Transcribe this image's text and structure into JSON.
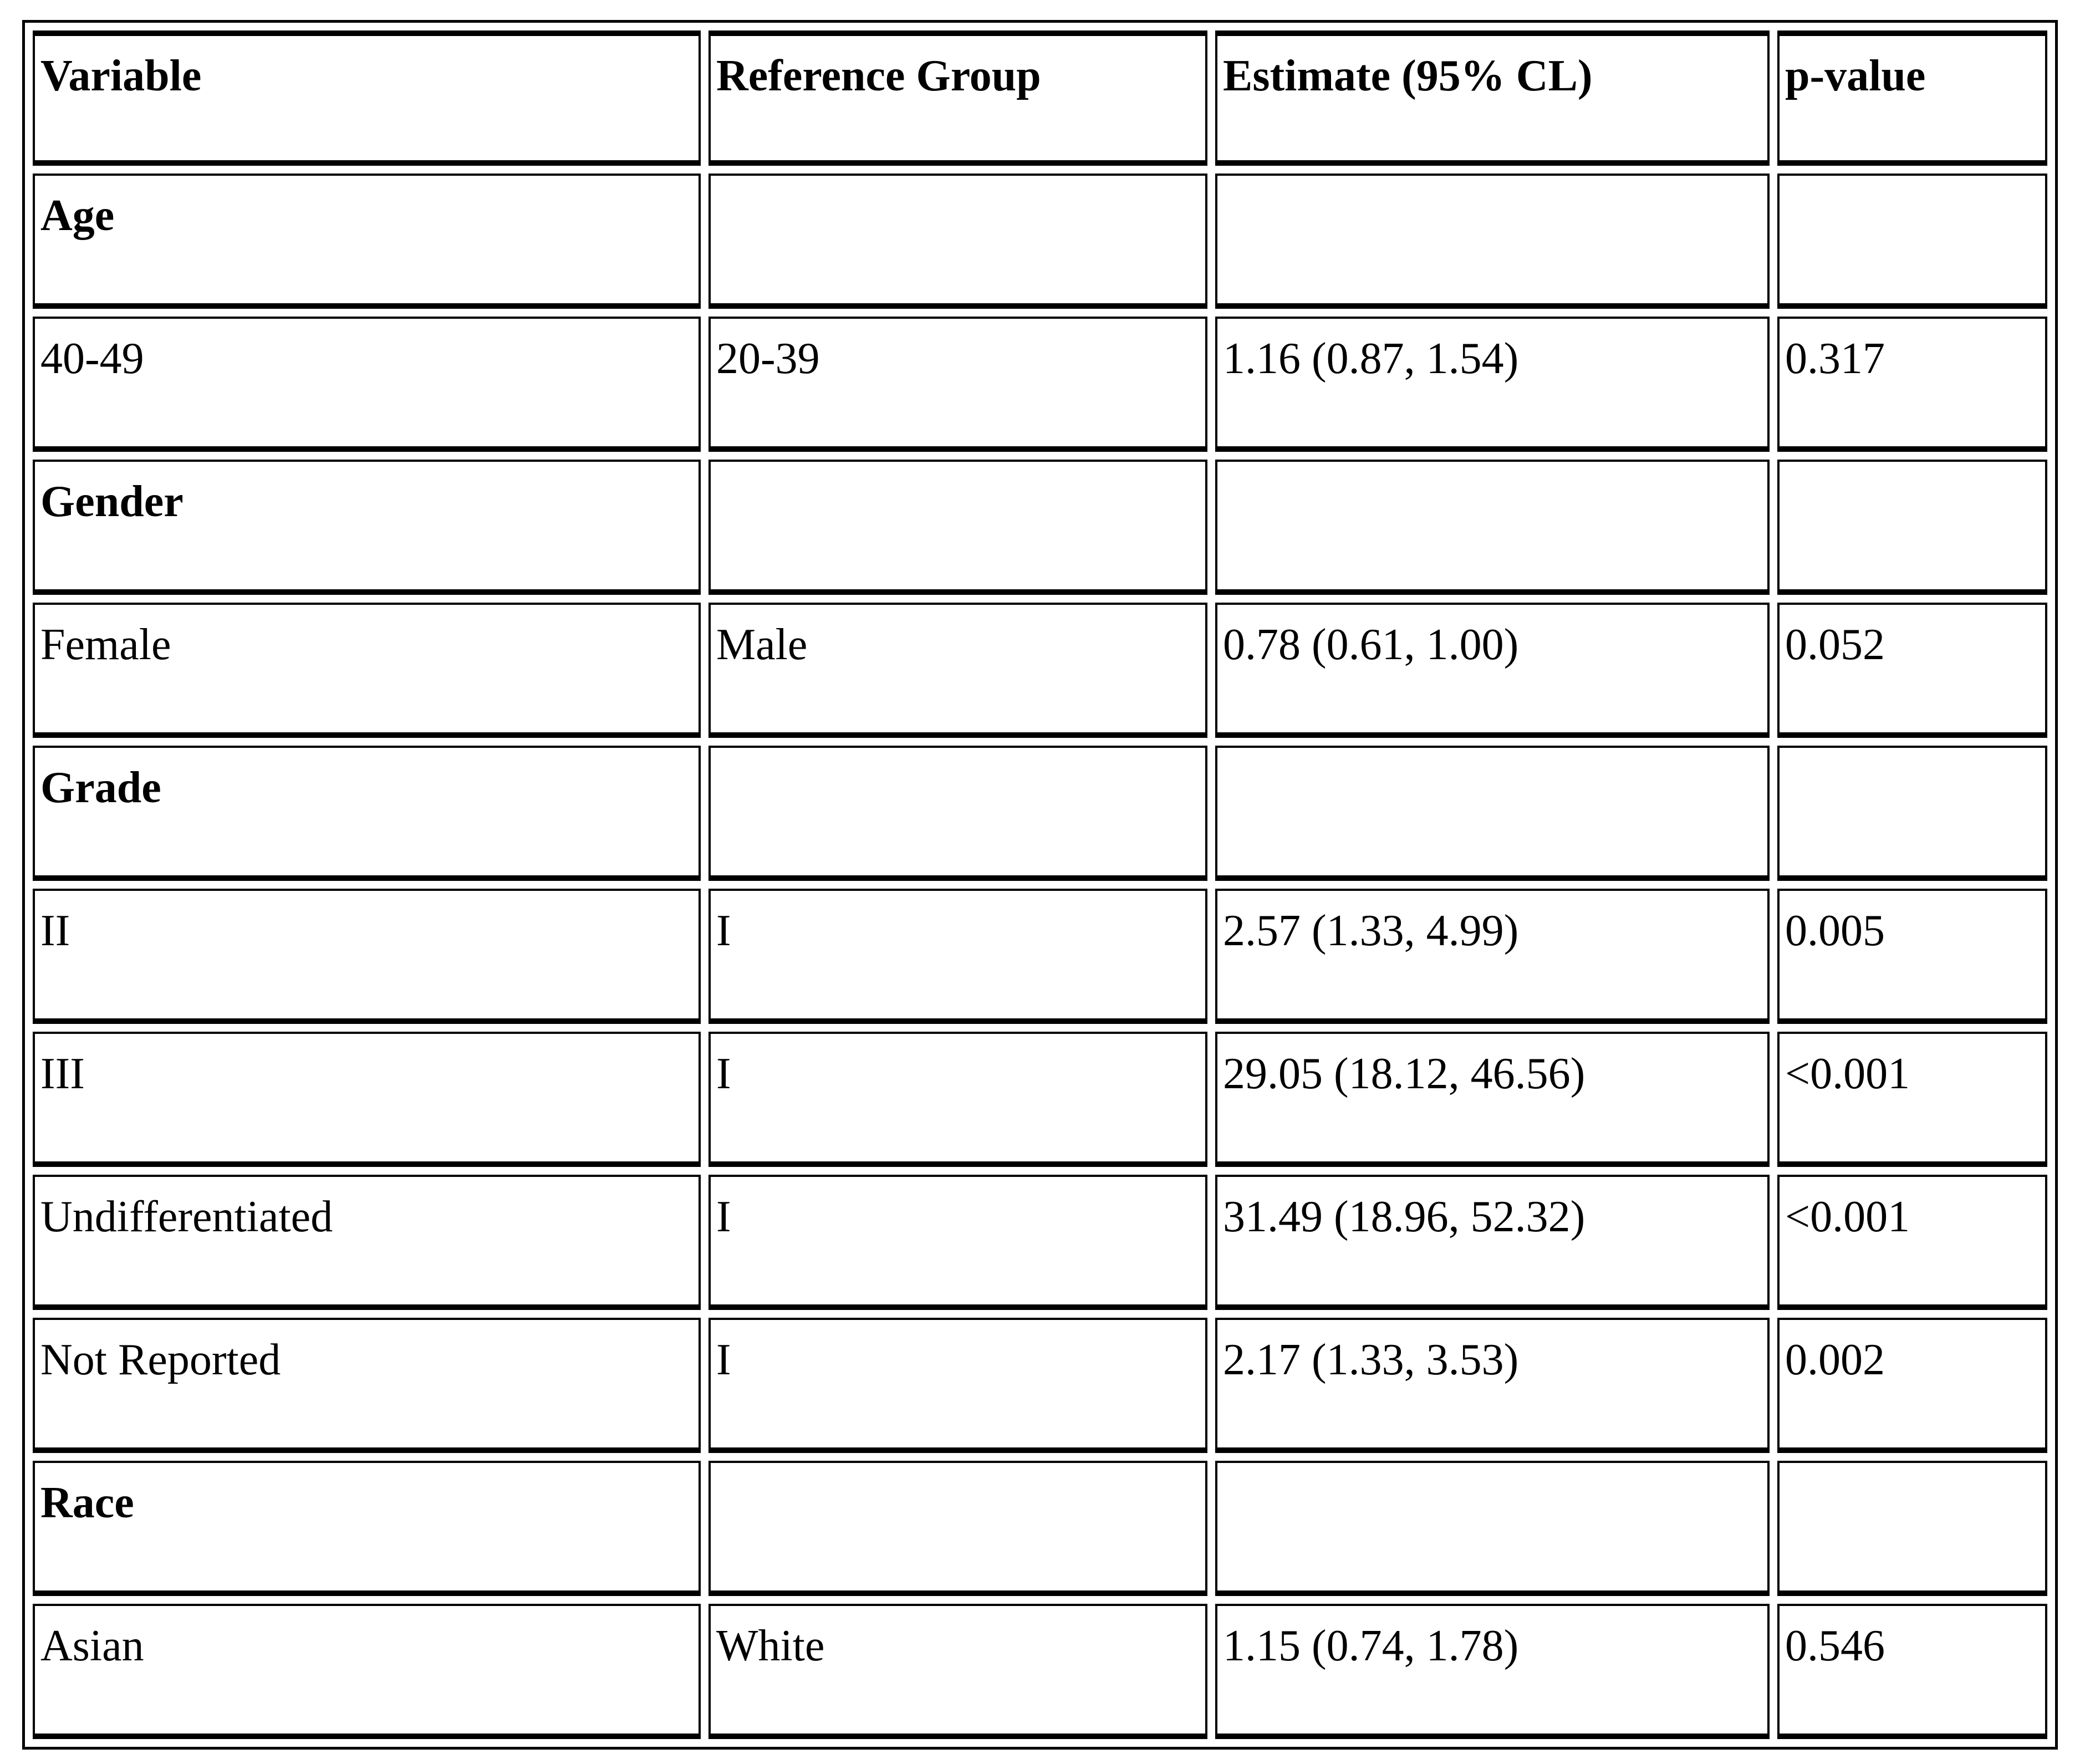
{
  "table": {
    "columns": [
      "Variable",
      "Reference Group",
      "Estimate (95% CL)",
      "p-value"
    ],
    "rows": [
      {
        "type": "section",
        "variable": "Age",
        "reference": "",
        "estimate": "",
        "p": ""
      },
      {
        "type": "data",
        "variable": "40-49",
        "reference": "20-39",
        "estimate": "1.16 (0.87, 1.54)",
        "p": "0.317"
      },
      {
        "type": "section",
        "variable": "Gender",
        "reference": "",
        "estimate": "",
        "p": ""
      },
      {
        "type": "data",
        "variable": "Female",
        "reference": "Male",
        "estimate": "0.78 (0.61, 1.00)",
        "p": "0.052"
      },
      {
        "type": "section",
        "variable": "Grade",
        "reference": "",
        "estimate": "",
        "p": ""
      },
      {
        "type": "data",
        "variable": "II",
        "reference": "I",
        "estimate": "2.57 (1.33, 4.99)",
        "p": "0.005"
      },
      {
        "type": "data",
        "variable": "III",
        "reference": "I",
        "estimate": "29.05 (18.12, 46.56)",
        "p": "<0.001"
      },
      {
        "type": "data",
        "variable": "Undifferentiated",
        "reference": "I",
        "estimate": "31.49 (18.96, 52.32)",
        "p": "<0.001"
      },
      {
        "type": "data",
        "variable": "Not Reported",
        "reference": "I",
        "estimate": "2.17 (1.33, 3.53)",
        "p": "0.002"
      },
      {
        "type": "section",
        "variable": "Race",
        "reference": "",
        "estimate": "",
        "p": ""
      },
      {
        "type": "data",
        "variable": "Asian",
        "reference": "White",
        "estimate": "1.15 (0.74, 1.78)",
        "p": "0.546"
      }
    ]
  }
}
